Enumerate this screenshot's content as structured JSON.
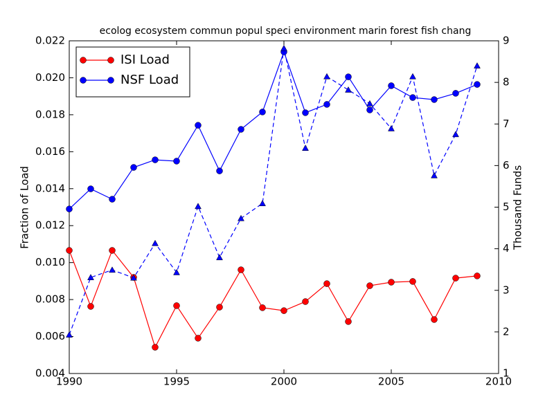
{
  "chart_data": {
    "type": "line",
    "title": "ecolog ecosystem commun popul speci environment marin forest fish chang",
    "ylabel": "Fraction of Load",
    "y2label": "Thousand Funds",
    "x": [
      1990,
      1991,
      1992,
      1993,
      1994,
      1995,
      1996,
      1997,
      1998,
      1999,
      2000,
      2001,
      2002,
      2003,
      2004,
      2005,
      2006,
      2007,
      2008,
      2009
    ],
    "series": [
      {
        "name": "ISI Load",
        "color": "#ff0000",
        "marker": "circle",
        "linestyle": "solid",
        "values": [
          0.01066,
          0.00763,
          0.01066,
          0.0092,
          0.00542,
          0.00767,
          0.00591,
          0.00759,
          0.00961,
          0.00756,
          0.0074,
          0.00789,
          0.00886,
          0.00681,
          0.00875,
          0.00894,
          0.00898,
          0.00692,
          0.00916,
          0.00928
        ]
      },
      {
        "name": "NSF Load",
        "color": "#0000ff",
        "marker": "circle",
        "linestyle": "solid",
        "values": [
          0.0129,
          0.01399,
          0.01343,
          0.01515,
          0.01556,
          0.01549,
          0.01743,
          0.01496,
          0.01721,
          0.01815,
          0.0214,
          0.01811,
          0.01856,
          0.02005,
          0.01826,
          0.01957,
          0.01893,
          0.01882,
          0.01916,
          0.01964
        ]
      },
      {
        "color": "#0000ff",
        "marker": "triangle",
        "linestyle": "dashed",
        "axis": "y2",
        "values": [
          1.93,
          3.31,
          3.49,
          3.3,
          4.13,
          3.43,
          5.02,
          3.79,
          4.73,
          5.09,
          8.82,
          6.42,
          8.14,
          7.82,
          7.49,
          6.89,
          8.14,
          5.76,
          6.75,
          8.4
        ]
      }
    ],
    "xlim": [
      1990,
      2010
    ],
    "xticks": [
      1990,
      1995,
      2000,
      2005,
      2010
    ],
    "ylim": [
      0.004,
      0.022
    ],
    "yticks": [
      0.004,
      0.006,
      0.008,
      {
        "value": 0.01,
        "label": "0.010"
      },
      0.012,
      0.014,
      0.016,
      0.018,
      {
        "value": 0.02,
        "label": "0.020"
      },
      0.022
    ],
    "y2lim": [
      1,
      9
    ],
    "y2ticks": [
      1,
      2,
      3,
      4,
      5,
      6,
      7,
      8,
      9
    ],
    "grid": false,
    "legend": "upper left"
  }
}
